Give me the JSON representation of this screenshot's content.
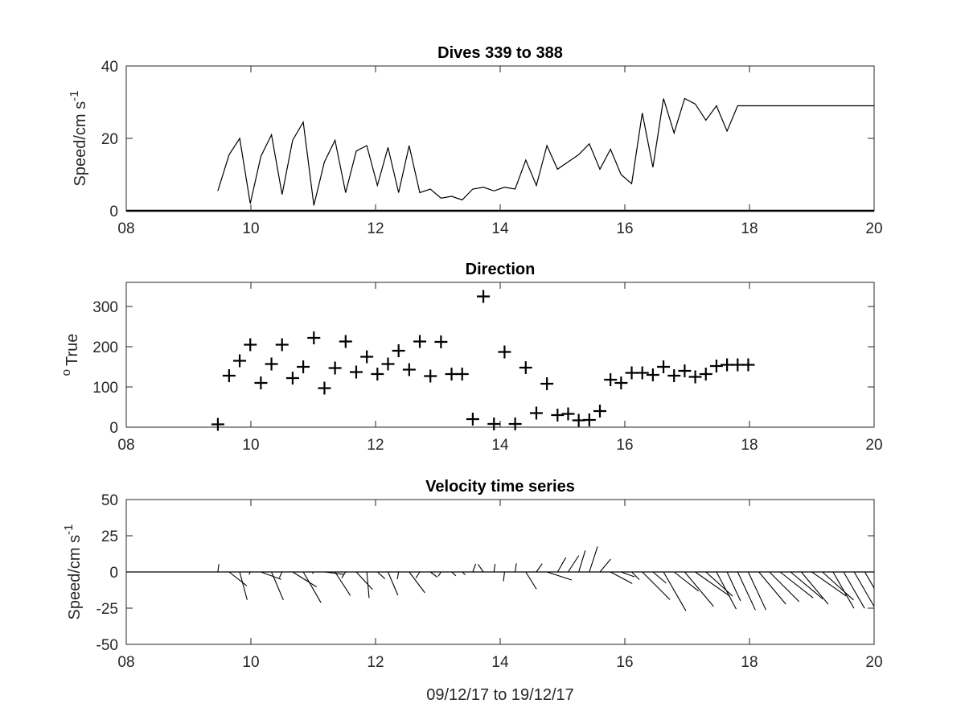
{
  "chart_data": [
    {
      "type": "line",
      "title": "Dives 339 to 388",
      "ylabel": "Speed/cm s",
      "ylabel_superscript": "-1",
      "xlabel": "",
      "xlim": [
        8,
        20
      ],
      "ylim": [
        0,
        40
      ],
      "xticks": [
        "08",
        "10",
        "12",
        "14",
        "16",
        "18",
        "20"
      ],
      "yticks": [
        "0",
        "20",
        "40"
      ],
      "grid": false,
      "series": [
        {
          "x": [
            9.47,
            9.65,
            9.82,
            9.99,
            10.16,
            10.33,
            10.5,
            10.67,
            10.84,
            11.01,
            11.18,
            11.35,
            11.52,
            11.69,
            11.86,
            12.03,
            12.2,
            12.37,
            12.54,
            12.71,
            12.88,
            13.05,
            13.22,
            13.39,
            13.56,
            13.73,
            13.9,
            14.07,
            14.24,
            14.41,
            14.58,
            14.75,
            14.92,
            15.09,
            15.26,
            15.43,
            15.6,
            15.77,
            15.94,
            16.11,
            16.28,
            16.45,
            16.62,
            16.79,
            16.96,
            17.13,
            17.3,
            17.47,
            17.64,
            17.81,
            17.98,
            18.15,
            18.32,
            18.49,
            18.66,
            18.83,
            19.0,
            19.17,
            19.34,
            19.51,
            19.68,
            19.85,
            20.0
          ],
          "values": [
            5.5,
            15.5,
            20.0,
            2.0,
            15.0,
            21.0,
            4.5,
            19.5,
            24.5,
            1.5,
            13.5,
            19.5,
            5.0,
            16.5,
            18.0,
            7.0,
            17.5,
            5.0,
            18.0,
            5.0,
            6.0,
            3.5,
            4.0,
            3.0,
            6.0,
            6.5,
            5.5,
            6.5,
            6.0,
            14.0,
            7.0,
            18.0,
            11.5,
            13.5,
            15.5,
            18.5,
            11.5,
            17.0,
            10.0,
            7.5,
            27.0,
            12.0,
            31.0,
            21.5,
            31.0,
            29.5,
            25.0,
            29.0,
            22.0,
            29.0,
            29.0,
            29.0,
            29.0,
            29.0,
            29.0,
            29.0,
            29.0,
            29.0,
            29.0,
            29.0,
            29.0,
            29.0,
            29.0
          ]
        }
      ]
    },
    {
      "type": "scatter",
      "title": "Direction",
      "ylabel": "True",
      "ylabel_prefix_superscript": "o",
      "xlabel": "",
      "xlim": [
        8,
        20
      ],
      "ylim": [
        0,
        360
      ],
      "xticks": [
        "08",
        "10",
        "12",
        "14",
        "16",
        "18",
        "20"
      ],
      "yticks": [
        "0",
        "100",
        "200",
        "300"
      ],
      "grid": false,
      "marker": "plus",
      "series": [
        {
          "x": [
            9.47,
            9.65,
            9.82,
            9.99,
            10.16,
            10.33,
            10.5,
            10.67,
            10.84,
            11.01,
            11.18,
            11.35,
            11.52,
            11.69,
            11.86,
            12.03,
            12.2,
            12.37,
            12.54,
            12.71,
            12.88,
            13.05,
            13.22,
            13.39,
            13.56,
            13.73,
            13.9,
            14.07,
            14.24,
            14.41,
            14.58,
            14.75,
            14.92,
            15.09,
            15.26,
            15.43,
            15.6,
            15.77,
            15.94,
            16.11,
            16.28,
            16.45,
            16.62,
            16.79,
            16.96,
            17.13,
            17.3,
            17.47,
            17.64,
            17.81,
            17.98
          ],
          "values": [
            7,
            128,
            165,
            205,
            110,
            157,
            205,
            122,
            150,
            222,
            97,
            147,
            213,
            137,
            175,
            132,
            157,
            190,
            143,
            213,
            127,
            212,
            132,
            132,
            20,
            325,
            8,
            187,
            8,
            148,
            35,
            108,
            30,
            33,
            17,
            18,
            40,
            118,
            110,
            135,
            135,
            130,
            150,
            128,
            140,
            125,
            132,
            152,
            155,
            155,
            155
          ]
        }
      ]
    },
    {
      "type": "quiver",
      "title": "Velocity time series",
      "ylabel": "Speed/cm s",
      "ylabel_superscript": "-1",
      "xlabel": "09/12/17 to 19/12/17",
      "xlim": [
        8,
        20
      ],
      "ylim": [
        -50,
        50
      ],
      "xticks": [
        "08",
        "10",
        "12",
        "14",
        "16",
        "18",
        "20"
      ],
      "yticks": [
        "-50",
        "-25",
        "0",
        "25",
        "50"
      ],
      "grid": false,
      "series": [
        {
          "x": [
            9.47,
            9.65,
            9.82,
            9.99,
            10.16,
            10.33,
            10.5,
            10.67,
            10.84,
            11.01,
            11.18,
            11.35,
            11.52,
            11.69,
            11.86,
            12.03,
            12.2,
            12.37,
            12.54,
            12.71,
            12.88,
            13.05,
            13.22,
            13.39,
            13.56,
            13.73,
            13.9,
            14.07,
            14.24,
            14.41,
            14.58,
            14.75,
            14.92,
            15.09,
            15.26,
            15.43,
            15.6,
            15.77,
            15.94,
            16.11,
            16.28,
            16.45,
            16.62,
            16.79,
            16.96,
            17.13,
            17.3,
            17.47,
            17.64,
            17.81,
            17.98,
            18.15,
            18.32,
            18.49,
            18.66,
            18.83,
            19.0,
            19.17,
            19.34,
            19.51,
            19.68,
            19.85,
            20.0
          ],
          "speed": [
            5.5,
            15.5,
            20.0,
            2.0,
            15.0,
            21.0,
            4.5,
            19.5,
            24.5,
            1.5,
            13.5,
            19.5,
            5.0,
            16.5,
            18.0,
            7.0,
            17.5,
            5.0,
            18.0,
            5.0,
            6.0,
            3.5,
            4.0,
            3.0,
            6.0,
            6.5,
            5.5,
            6.5,
            6.0,
            14.0,
            7.0,
            18.0,
            11.5,
            13.5,
            15.5,
            18.5,
            11.5,
            17.0,
            10.0,
            7.5,
            27.0,
            12.0,
            31.0,
            21.5,
            31.0,
            29.5,
            25.0,
            29.0,
            22.0,
            29.0,
            29.0,
            29.0,
            29.0,
            29.0,
            29.0,
            29.0,
            29.0,
            29.0,
            29.0,
            29.0,
            29.0,
            29.0,
            29.0
          ],
          "direction": [
            7,
            128,
            165,
            205,
            110,
            157,
            205,
            122,
            150,
            222,
            97,
            147,
            213,
            137,
            175,
            132,
            157,
            190,
            143,
            213,
            127,
            212,
            132,
            132,
            20,
            325,
            8,
            187,
            8,
            148,
            35,
            108,
            30,
            33,
            17,
            18,
            40,
            118,
            110,
            135,
            135,
            130,
            150,
            128,
            140,
            125,
            132,
            152,
            155,
            155,
            155,
            140,
            135,
            128,
            130,
            140,
            125,
            132,
            150,
            150,
            150,
            150,
            150
          ]
        }
      ]
    }
  ]
}
